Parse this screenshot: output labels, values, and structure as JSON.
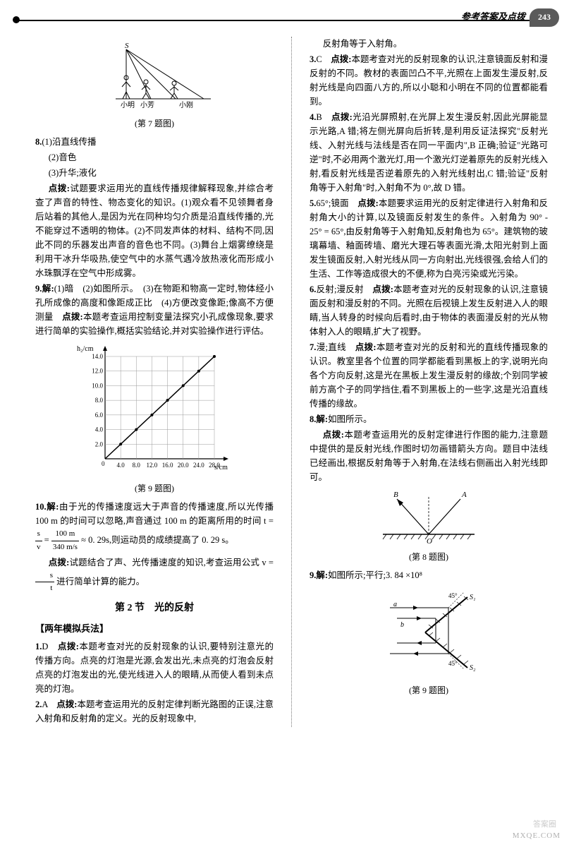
{
  "header": {
    "title": "参考答案及点拨",
    "page_number": "243"
  },
  "left_column": {
    "fig7_caption": "(第 7 题图)",
    "fig7_labels": {
      "s": "S",
      "a": "小明",
      "b": "小芳",
      "c": "小刚"
    },
    "q8": {
      "num": "8.",
      "a1": "(1)沿直线传播",
      "a2": "(2)音色",
      "a3": "(3)升华;液化",
      "dianbo_label": "点拨:",
      "dianbo": "试题要求运用光的直线传播规律解释现象,并综合考查了声音的特性、物态变化的知识。(1)观众看不见领舞者身后站着的其他人,是因为光在同种均匀介质是沿直线传播的,光不能穿过不透明的物体。(2)不同发声体的材料、结构不同,因此不同的乐器发出声音的音色也不同。(3)舞台上烟雾缭绕是利用干冰升华吸热,使空气中的水蒸气遇冷放热液化而形成小水珠飘浮在空气中形成雾。"
    },
    "q9": {
      "num": "9.",
      "jie": "解:",
      "text": "(1)暗　(2)如图所示。　(3)在物距和物高一定时,物体经小孔所成像的高度和像距成正比　(4)方便改变像距;像高不方便测量　",
      "dianbo_label": "点拨:",
      "dianbo": "本题考查运用控制变量法探究小孔成像现象,要求进行简单的实验操作,概括实验结论,并对实验操作进行评估。",
      "chart": {
        "type": "line",
        "y_label": "h₂/cm",
        "x_label": "s/cm",
        "y_ticks": [
          "2.0",
          "4.0",
          "6.0",
          "8.0",
          "10.0",
          "12.0",
          "14.0"
        ],
        "x_ticks": [
          "4.0",
          "8.0",
          "12.0",
          "16.0",
          "20.0",
          "24.0",
          "28.0"
        ],
        "points": [
          [
            4,
            2
          ],
          [
            8,
            4
          ],
          [
            12,
            6
          ],
          [
            16,
            8
          ],
          [
            20,
            10
          ],
          [
            24,
            12
          ],
          [
            28,
            14
          ]
        ],
        "line_color": "#000000",
        "grid_color": "#999999",
        "bg_color": "#ffffff"
      },
      "fig_caption": "(第 9 题图)"
    },
    "q10": {
      "num": "10.",
      "jie": "解:",
      "text1": "由于光的传播速度远大于声音的传播速度,所以光传播 100 m 的时间可以忽略,声音通过 100 m 的距离所用的时间 t =",
      "frac_s": "s",
      "frac_v": "v",
      "eq": " = ",
      "frac_num": "100 m",
      "frac_den": "340 m/s",
      "approx": " ≈ 0. 29s,则运动员的成绩提高了 0. 29 s。",
      "dianbo_label": "点拨:",
      "dianbo": "试题结合了声、光传播速度的知识,考查运用公式 v = ",
      "frac2_s": "s",
      "frac2_t": "t",
      "dianbo2": " 进行简单计算的能力。"
    },
    "section2_title": "第 2 节　光的反射",
    "moni_title": "【两年模拟兵法】",
    "s2_q1": {
      "num": "1.",
      "ans": "D　",
      "dianbo_label": "点拨:",
      "text": "本题考查对光的反射现象的认识,要特别注意光的传播方向。点亮的灯泡是光源,会发出光,未点亮的灯泡会反射点亮的灯泡发出的光,使光线进入人的眼睛,从而使人看到未点亮的灯泡。"
    },
    "s2_q2": {
      "num": "2.",
      "ans": "A　",
      "dianbo_label": "点拨:",
      "text": "本题考查运用光的反射定律判断光路图的正误,注意入射角和反射角的定义。光的反射现象中,"
    }
  },
  "right_column": {
    "q2_cont": "反射角等于入射角。",
    "q3": {
      "num": "3.",
      "ans": "C　",
      "dianbo_label": "点拨:",
      "text": "本题考查对光的反射现象的认识,注意镜面反射和漫反射的不同。教材的表面凹凸不平,光照在上面发生漫反射,反射光线是向四面八方的,所以小聪和小明在不同的位置都能看到。"
    },
    "q4": {
      "num": "4.",
      "ans": "B　",
      "dianbo_label": "点拨:",
      "text": "光沿光屏照射,在光屏上发生漫反射,因此光屏能显示光路,A 错;将左侧光屏向后折转,是利用反证法探究\"反射光线、入射光线与法线是否在同一平面内\",B 正确;验证\"光路可逆\"时,不必用两个激光灯,用一个激光灯逆着原先的反射光线入射,看反射光线是否逆着原先的入射光线射出,C 错;验证\"反射角等于入射角\"时,入射角不为 0°,故 D 错。"
    },
    "q5": {
      "num": "5.",
      "ans": "65°;镜面　",
      "dianbo_label": "点拨:",
      "text": "本题要求运用光的反射定律进行入射角和反射角大小的计算,以及镜面反射发生的条件。入射角为 90° - 25° = 65°,由反射角等于入射角知,反射角也为 65°。建筑物的玻璃幕墙、釉面砖墙、磨光大理石等表面光滑,太阳光射到上面发生镜面反射,入射光线从同一方向射出,光线很强,会给人们的生活、工作等造成很大的不便,称为白亮污染或光污染。"
    },
    "q6": {
      "num": "6.",
      "ans": "反射;漫反射　",
      "dianbo_label": "点拨:",
      "text": "本题考查对光的反射现象的认识,注意镜面反射和漫反射的不同。光照在后视镜上发生反射进入人的眼睛,当人转身的时候向后看时,由于物体的表面漫反射的光从物体射入人的眼睛,扩大了视野。"
    },
    "q7": {
      "num": "7.",
      "ans": "漫;直线　",
      "dianbo_label": "点拨:",
      "text": "本题考查对光的反射和光的直线传播现象的认识。教室里各个位置的同学都能看到黑板上的字,说明光向各个方向反射,这是光在黑板上发生漫反射的缘故;个别同学被前方高个子的同学挡住,看不到黑板上的一些字,这是光沿直线传播的缘故。"
    },
    "q8": {
      "num": "8.",
      "jie": "解:",
      "ans": "如图所示。",
      "dianbo_label": "点拨:",
      "text": "本题考查运用光的反射定律进行作图的能力,注意题中提供的是反射光线,作图时切勿画错箭头方向。题目中法线已经画出,根据反射角等于入射角,在法线右侧画出入射光线即可。",
      "fig_labels": {
        "b": "B",
        "a": "A",
        "o": "O"
      },
      "fig_caption": "(第 8 题图)"
    },
    "q9": {
      "num": "9.",
      "jie": "解:",
      "ans": "如图所示;平行;3. 84 ×10⁸",
      "fig_labels": {
        "s1": "S₁",
        "s2": "S₂",
        "a": "a",
        "b": "b",
        "ang": "45°"
      },
      "fig_caption": "(第 9 题图)"
    }
  },
  "watermark": "MXQE.COM",
  "watermark2": "答案圈"
}
